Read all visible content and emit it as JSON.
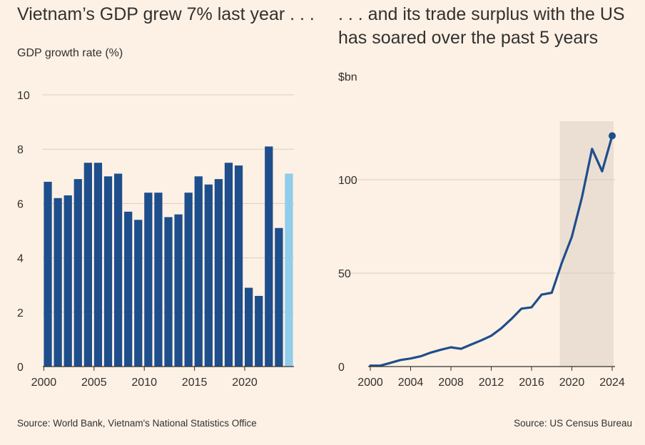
{
  "colors": {
    "background": "#fdf1e5",
    "bar": "#1e4e8c",
    "bar_highlight": "#8fcdea",
    "line": "#1e4e8c",
    "shade": "#ebdfd3",
    "grid": "#d9ccc0",
    "axis": "#33302e"
  },
  "left": {
    "title": "Vietnam’s GDP grew 7% last year . . .",
    "unit": "GDP growth rate (%)",
    "source": "Source: World Bank, Vietnam's National Statistics Office"
  },
  "right": {
    "title": ". . . and its trade surplus with the US has soared over the past 5 years",
    "unit": "$bn",
    "source": "Source: US Census Bureau"
  },
  "chart_data": [
    {
      "type": "bar",
      "title": "Vietnam’s GDP grew 7% last year . . .",
      "ylabel": "GDP growth rate (%)",
      "ylim": [
        0,
        10
      ],
      "yticks": [
        0,
        2,
        4,
        6,
        8,
        10
      ],
      "xticks": [
        2000,
        2005,
        2010,
        2015,
        2020
      ],
      "grid": true,
      "categories": [
        2000,
        2001,
        2002,
        2003,
        2004,
        2005,
        2006,
        2007,
        2008,
        2009,
        2010,
        2011,
        2012,
        2013,
        2014,
        2015,
        2016,
        2017,
        2018,
        2019,
        2020,
        2021,
        2022,
        2023,
        2024
      ],
      "values": [
        6.8,
        6.2,
        6.3,
        6.9,
        7.5,
        7.5,
        7.0,
        7.1,
        5.7,
        5.4,
        6.4,
        6.4,
        5.5,
        5.6,
        6.4,
        7.0,
        6.7,
        6.9,
        7.5,
        7.4,
        2.9,
        2.6,
        8.1,
        5.1,
        7.1
      ],
      "highlight": [
        2024
      ]
    },
    {
      "type": "line",
      "title": ". . . and its trade surplus with the US has soared over the past 5 years",
      "ylabel": "$bn",
      "ylim": [
        0,
        130
      ],
      "yticks": [
        0,
        50,
        100
      ],
      "xticks": [
        2000,
        2004,
        2008,
        2012,
        2016,
        2020,
        2024
      ],
      "grid": true,
      "shaded_range": [
        2019,
        2024
      ],
      "x": [
        2000,
        2001,
        2002,
        2003,
        2004,
        2005,
        2006,
        2007,
        2008,
        2009,
        2010,
        2011,
        2012,
        2013,
        2014,
        2015,
        2016,
        2017,
        2018,
        2019,
        2020,
        2021,
        2022,
        2023,
        2024
      ],
      "values": [
        0.5,
        0.5,
        2,
        3.5,
        4.3,
        5.5,
        7.5,
        9,
        10.3,
        9.5,
        11.8,
        14,
        16.5,
        20.5,
        25.5,
        31,
        31.7,
        38.5,
        39.5,
        55.5,
        69.5,
        90.5,
        116.5,
        104.5,
        123.5
      ]
    }
  ]
}
